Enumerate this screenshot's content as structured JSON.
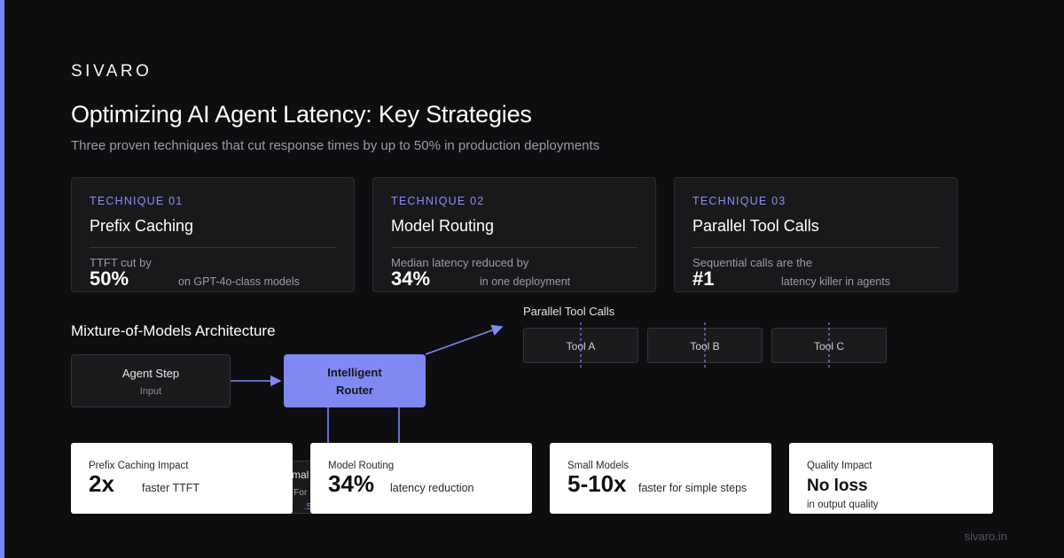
{
  "brand": "SIVARO",
  "title": "Optimizing AI Agent Latency: Key Strategies",
  "subtitle": "Three proven techniques that cut response times by up to 50% in production deployments",
  "techniques": [
    {
      "kicker": "TECHNIQUE 01",
      "name": "Prefix Caching",
      "desc": "TTFT cut by",
      "stat": "50%",
      "note": "on GPT-4o-class models"
    },
    {
      "kicker": "TECHNIQUE 02",
      "name": "Model Routing",
      "desc": "Median latency reduced by",
      "stat": "34%",
      "note": "in one deployment"
    },
    {
      "kicker": "TECHNIQUE 03",
      "name": "Parallel Tool Calls",
      "desc": "Sequential calls are the",
      "stat": "#1",
      "note": "latency killer in agents"
    }
  ],
  "architecture": {
    "title": "Mixture-of-Models Architecture",
    "agent": {
      "label": "Agent Step",
      "sub": "Input"
    },
    "router": {
      "line1": "Intelligent",
      "line2": "Router"
    },
    "parallel_label": "Parallel Tool Calls",
    "tools": [
      "Tool A",
      "Tool B",
      "Tool C"
    ],
    "hidden_node": {
      "label": "mal",
      "sub": "• For",
      "hint": ".5"
    }
  },
  "stats": [
    {
      "label": "Prefix Caching Impact",
      "value": "2x",
      "note": "faster TTFT"
    },
    {
      "label": "Model Routing",
      "value": "34%",
      "note": "latency reduction"
    },
    {
      "label": "Small Models",
      "value": "5-10x",
      "note": "faster for simple steps"
    },
    {
      "label": "Quality Impact",
      "value": "No loss",
      "note": "in output quality"
    }
  ],
  "footer": "sivaro.in",
  "colors": {
    "accent": "#7b83f2",
    "background": "#0e0e10",
    "card": "#19191c",
    "router": "#8088f4"
  }
}
